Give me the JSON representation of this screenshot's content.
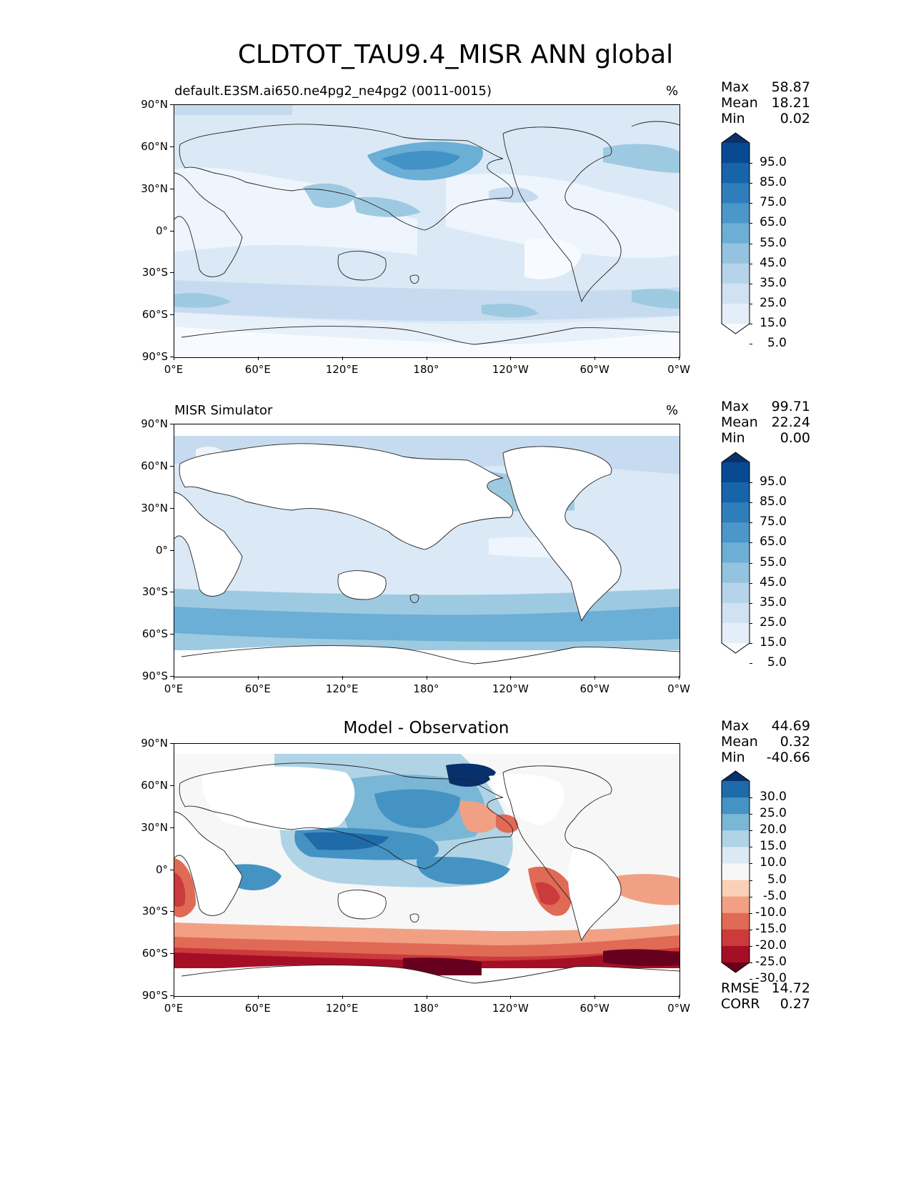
{
  "figure": {
    "title": "CLDTOT_TAU9.4_MISR ANN global"
  },
  "axes": {
    "lat_labels": [
      "90°N",
      "60°N",
      "30°N",
      "0°",
      "30°S",
      "60°S",
      "90°S"
    ],
    "lon_labels": [
      "0°E",
      "60°E",
      "120°E",
      "180°",
      "120°W",
      "60°W",
      "0°W"
    ]
  },
  "panels": [
    {
      "id": "test",
      "title_left": "default.E3SM.ai650.ne4pg2_ne4pg2 (0011-0015)",
      "units": "%",
      "stats": [
        {
          "label": "Max",
          "value": "58.87"
        },
        {
          "label": "Mean",
          "value": "18.21"
        },
        {
          "label": "Min",
          "value": "0.02"
        }
      ],
      "colorbar": {
        "colors": [
          "#f7fbff",
          "#e3eef9",
          "#cfe1f2",
          "#b5d4e9",
          "#93c3df",
          "#6daed5",
          "#4b97c9",
          "#2e7ebc",
          "#1764ab",
          "#084a91",
          "#08306b"
        ],
        "labels": [
          "95.0",
          "85.0",
          "75.0",
          "65.0",
          "55.0",
          "45.0",
          "35.0",
          "25.0",
          "15.0",
          "5.0"
        ]
      }
    },
    {
      "id": "ref",
      "title_left": "MISR Simulator",
      "units": "%",
      "stats": [
        {
          "label": "Max",
          "value": "99.71"
        },
        {
          "label": "Mean",
          "value": "22.24"
        },
        {
          "label": "Min",
          "value": "0.00"
        }
      ],
      "colorbar": {
        "colors": [
          "#f7fbff",
          "#e3eef9",
          "#cfe1f2",
          "#b5d4e9",
          "#93c3df",
          "#6daed5",
          "#4b97c9",
          "#2e7ebc",
          "#1764ab",
          "#084a91",
          "#08306b"
        ],
        "labels": [
          "95.0",
          "85.0",
          "75.0",
          "65.0",
          "55.0",
          "45.0",
          "35.0",
          "25.0",
          "15.0",
          "5.0"
        ]
      }
    },
    {
      "id": "diff",
      "title_center": "Model - Observation",
      "stats": [
        {
          "label": "Max",
          "value": "44.69"
        },
        {
          "label": "Mean",
          "value": "0.32"
        },
        {
          "label": "Min",
          "value": "-40.66"
        }
      ],
      "extra_stats": [
        {
          "label": "RMSE",
          "value": "14.72"
        },
        {
          "label": "CORR",
          "value": "0.27"
        }
      ],
      "colorbar": {
        "colors": [
          "#67001f",
          "#a50f26",
          "#cb3a3c",
          "#e06a55",
          "#f2a083",
          "#fbd0b9",
          "#f7f7f7",
          "#dbeaf2",
          "#b0d3e6",
          "#7ab6d6",
          "#4493c3",
          "#1f6aa8",
          "#08306b"
        ],
        "labels": [
          "30.0",
          "25.0",
          "20.0",
          "15.0",
          "10.0",
          "5.0",
          "-5.0",
          "-10.0",
          "-15.0",
          "-20.0",
          "-25.0",
          "-30.0"
        ]
      }
    }
  ]
}
